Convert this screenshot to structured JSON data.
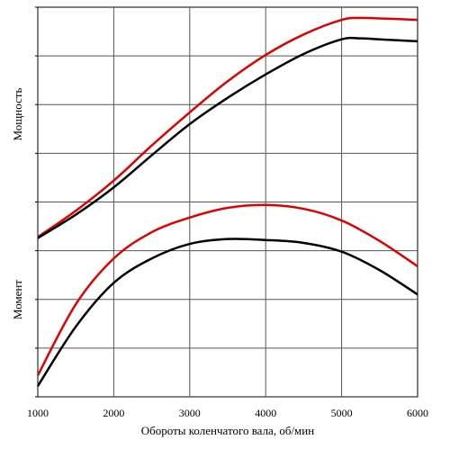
{
  "chart_data": {
    "type": "line",
    "title": "",
    "xlabel": "Обороты коленчатого вала, об/мин",
    "ylabel_upper": "Мощность",
    "ylabel_lower": "Момент",
    "x_ticks": [
      "1000",
      "2000",
      "3000",
      "4000",
      "5000",
      "6000"
    ],
    "xlim": [
      1000,
      6000
    ],
    "ylim": [
      0,
      8
    ],
    "y_gridlines": [
      1,
      2,
      3,
      4,
      5,
      6,
      7,
      8
    ],
    "grid": true,
    "legend": "none",
    "y_tick_labels": false,
    "series": [
      {
        "group": "power",
        "color": "#e00000",
        "x": [
          1000,
          1500,
          2000,
          2500,
          3000,
          3500,
          4000,
          4500,
          5000,
          5250,
          5500,
          6000
        ],
        "y": [
          3.28,
          3.82,
          4.44,
          5.16,
          5.84,
          6.48,
          7.02,
          7.44,
          7.74,
          7.78,
          7.77,
          7.74
        ]
      },
      {
        "group": "power",
        "color": "#000000",
        "x": [
          1000,
          1500,
          2000,
          2500,
          3000,
          3500,
          4000,
          4500,
          5000,
          5250,
          5500,
          6000
        ],
        "y": [
          3.26,
          3.74,
          4.3,
          4.96,
          5.6,
          6.14,
          6.62,
          7.04,
          7.34,
          7.36,
          7.34,
          7.3
        ]
      },
      {
        "group": "torque",
        "color": "#e00000",
        "x": [
          1000,
          1500,
          2000,
          2500,
          3000,
          3500,
          4000,
          4500,
          5000,
          5500,
          6000
        ],
        "y": [
          0.44,
          1.9,
          2.84,
          3.38,
          3.68,
          3.88,
          3.94,
          3.86,
          3.62,
          3.2,
          2.68
        ]
      },
      {
        "group": "torque",
        "color": "#000000",
        "x": [
          1000,
          1500,
          2000,
          2500,
          3000,
          3500,
          4000,
          4500,
          5000,
          5500,
          6000
        ],
        "y": [
          0.22,
          1.44,
          2.34,
          2.84,
          3.14,
          3.24,
          3.22,
          3.16,
          2.98,
          2.6,
          2.1
        ]
      }
    ]
  }
}
